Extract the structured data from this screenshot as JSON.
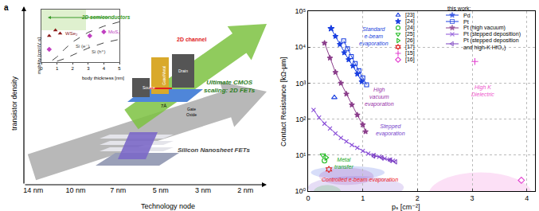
{
  "panel_label": "a",
  "chart_data": [
    {
      "type": "schematic",
      "categories": [
        "14 nm",
        "10 nm",
        "7 nm",
        "5 nm",
        "3 nm",
        "2 nm"
      ],
      "x_label": "Technology node",
      "y_label": "transistor density",
      "tick_labels": "x",
      "labels": {
        "nanosheet": "Silicon Nanosheet FETs",
        "ultimate": "Ultimate CMOS\nscaling: 2D FETs",
        "channel": "2D channel",
        "thickness": "7Å",
        "gate_metal": "Gate/Metal",
        "gate_oxide": "Gate\nOxide",
        "source": "Source",
        "drain": "Drain"
      }
    },
    {
      "type": "line",
      "annotations": [
        "2D semiconductors"
      ],
      "x_label": "body thickness [nm]",
      "y_label": "mobility [cm²/V·s]",
      "xlim": [
        0,
        5
      ],
      "xticks": [
        0,
        1,
        2,
        3,
        4,
        5
      ],
      "ylim": [
        0,
        600
      ],
      "tick_labels": "x",
      "series": [
        {
          "name": "Si (e⁻)",
          "type": "line",
          "color": "#444444",
          "line_style": "dash",
          "x": [
            0.7,
            1,
            1.5,
            2,
            3,
            4,
            5
          ],
          "values": [
            20,
            60,
            150,
            230,
            340,
            410,
            460
          ]
        },
        {
          "name": "Si (h⁺)",
          "type": "line",
          "color": "#444444",
          "line_style": "dash",
          "x": [
            1,
            1.5,
            2,
            3,
            4,
            5
          ],
          "values": [
            10,
            40,
            80,
            160,
            220,
            260
          ]
        },
        {
          "name": "WSe₂",
          "type": "scatter",
          "color": "#8b1a1a",
          "marker": "triangle-up",
          "x": [
            0.5,
            0.9,
            1.2
          ],
          "values": [
            300,
            364,
            327
          ]
        },
        {
          "name": "MoS₂",
          "type": "scatter",
          "color": "#c040c0",
          "marker": "diamond",
          "x": [
            0.5,
            3.1,
            4.0
          ],
          "values": [
            145,
            300,
            345
          ]
        }
      ]
    },
    {
      "type": "scatter",
      "x_label": "pₛ [cm⁻²]",
      "y_label": "Contact Resistance [kΩ-µm]",
      "log": "y",
      "grid": true,
      "xlim": [
        0,
        4.15
      ],
      "xticks": [
        0,
        1,
        2,
        3,
        4
      ],
      "ylim": [
        1,
        100000
      ],
      "yticks": [
        {
          "value": 1,
          "label": "10⁰"
        },
        {
          "value": 10,
          "label": "10¹"
        },
        {
          "value": 100,
          "label": "10²"
        },
        {
          "value": 1000,
          "label": "10³"
        },
        {
          "value": 10000,
          "label": "10⁴"
        },
        {
          "value": 100000,
          "label": "10⁵"
        }
      ],
      "series": [
        {
          "name": "[23]",
          "color": "#1a3fe0",
          "marker": "triangle-up-open",
          "line_style": "none",
          "x": [
            0.48
          ],
          "values": [
            400
          ]
        },
        {
          "name": "[24]",
          "color": "#1a3fe0",
          "marker": "star",
          "line_style": "none",
          "x": [
            0.42
          ],
          "values": [
            33000
          ]
        },
        {
          "name": "[24]",
          "color": "#22bb22",
          "marker": "circle-open",
          "line_style": "none",
          "x": [
            0.3
          ],
          "values": [
            7
          ]
        },
        {
          "name": "[25]",
          "color": "#22bb22",
          "marker": "triangle-down-open",
          "line_style": "none",
          "x": [
            0.27
          ],
          "values": [
            10
          ]
        },
        {
          "name": "[26]",
          "color": "#22bb22",
          "marker": "triangle-right-open",
          "line_style": "none",
          "x": [
            0.33
          ],
          "values": [
            8.5
          ]
        },
        {
          "name": "[17]",
          "color": "#e02020",
          "marker": "hexagram-open",
          "line_style": "none",
          "x": [
            0.38
          ],
          "values": [
            4
          ]
        },
        {
          "name": "[15]",
          "color": "#e23fd0",
          "marker": "cross-thin-open",
          "line_style": "none",
          "x": [
            3.05
          ],
          "values": [
            4000
          ]
        },
        {
          "name": "[16]",
          "color": "#e23fd0",
          "marker": "diamond-open",
          "line_style": "none",
          "x": [
            3.9
          ],
          "values": [
            2
          ]
        }
      ],
      "this_work": {
        "title": "this work:",
        "series": [
          {
            "name": "Pd",
            "color": "#1a3fe0",
            "marker": "star",
            "line_style": "solid",
            "x": [
              0.42,
              0.5,
              0.58,
              0.66,
              0.74,
              0.82,
              0.9,
              0.98
            ],
            "values": [
              33000,
              20000,
              12000,
              7000,
              4500,
              3000,
              1800,
              1100
            ]
          },
          {
            "name": "Pt",
            "color": "#1a3fe0",
            "marker": "square-open",
            "line_style": "solid",
            "x": [
              0.65,
              0.72,
              0.79,
              0.86,
              0.93,
              1.0,
              1.07
            ],
            "values": [
              15000,
              9000,
              5500,
              3500,
              2200,
              1400,
              900
            ]
          },
          {
            "name": "Pt (high vacuum)",
            "color": "#8b3d8b",
            "marker": "star",
            "line_style": "solid",
            "x": [
              0.3,
              0.4,
              0.5,
              0.6,
              0.7,
              0.8,
              0.9,
              1.0,
              1.05
            ],
            "values": [
              13000,
              5000,
              2000,
              1000,
              500,
              250,
              130,
              70,
              45
            ]
          },
          {
            "name": "Pt (stepped deposition)",
            "color": "#8a4fd8",
            "marker": "x-thin",
            "line_style": "solid",
            "x": [
              0.1,
              0.2,
              0.3,
              0.4,
              0.5,
              0.6,
              0.7,
              0.8,
              0.9,
              1.0,
              1.1,
              1.2,
              1.3,
              1.4,
              1.5,
              1.55
            ],
            "values": [
              180,
              110,
              75,
              55,
              40,
              30,
              24,
              19,
              16,
              13,
              11,
              10,
              9,
              8,
              7.5,
              7
            ]
          },
          {
            "name": "Pt (stepped deposition\nand high-K HfO₂)",
            "color": "#7a3fc0",
            "marker": "triangle-left-open",
            "line_style": "solid",
            "x": [
              1.2,
              1.35,
              1.5,
              1.6
            ],
            "values": [
              9.5,
              8.5,
              7.2,
              6.5
            ]
          }
        ]
      },
      "regions": [
        {
          "label": "Standard\ne-beam\nevaporation",
          "color": "#2244dd",
          "x": [
            0.05,
            1.4
          ],
          "y": [
            150,
            90000
          ],
          "label_at": [
            1.2,
            20000
          ]
        },
        {
          "label": "High\nvacuum\nevaporation",
          "color": "#9933aa",
          "x": [
            0.2,
            1.2
          ],
          "y": [
            30,
            30000
          ],
          "label_at": [
            1.3,
            400
          ]
        },
        {
          "label": "Stepped\nevaporation",
          "color": "#7744cc",
          "x": [
            0.0,
            1.75
          ],
          "y": [
            4,
            400
          ],
          "label_at": [
            1.5,
            50
          ]
        },
        {
          "label": "Metal\ntransfer",
          "color": "#22aa22",
          "x": [
            0.1,
            0.6
          ],
          "y": [
            4,
            30
          ],
          "label_at": [
            0.65,
            6
          ]
        },
        {
          "label": "Controlled e-beam evaporation",
          "color": "#ee2222",
          "x": [
            0.1,
            1.0
          ],
          "y": [
            2.2,
            7
          ],
          "label_at": [
            0.95,
            2
          ]
        },
        {
          "label": "High K\nDielectric",
          "color": "#ee55cc",
          "x": [
            2.2,
            4.1
          ],
          "y": [
            1.5,
            2000
          ],
          "label_at": [
            3.2,
            600
          ]
        }
      ]
    }
  ]
}
